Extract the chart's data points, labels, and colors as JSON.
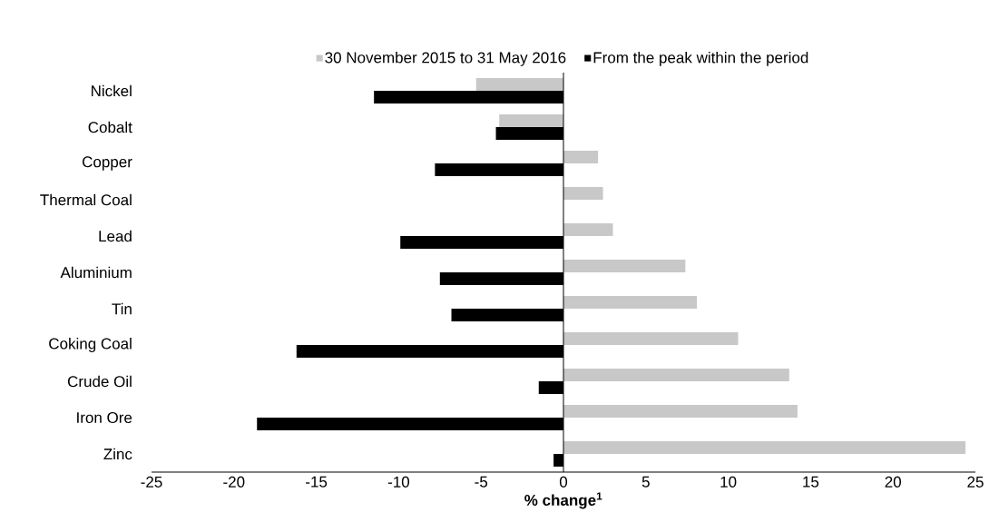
{
  "chart_data": {
    "type": "bar",
    "orientation": "horizontal",
    "xlabel": "% change$^{1}$",
    "categories": [
      "Nickel",
      "Cobalt",
      "Copper",
      "Thermal Coal",
      "Lead",
      "Aluminium",
      "Tin",
      "Coking Coal",
      "Crude Oil",
      "Iron Ore",
      "Zinc"
    ],
    "series": [
      {
        "name": "30 November 2015 to 31 May 2016",
        "color": "#c8c8c8",
        "values": [
          -5.3,
          -3.9,
          2.1,
          2.4,
          3.0,
          7.4,
          8.1,
          10.6,
          13.7,
          14.2,
          24.4
        ]
      },
      {
        "name": "From the peak within the period",
        "color": "#000000",
        "values": [
          -11.5,
          -4.1,
          -7.8,
          null,
          -9.9,
          -7.5,
          -6.8,
          -16.2,
          -1.5,
          -18.6,
          -0.6
        ]
      }
    ],
    "xlim": [
      -25,
      25
    ],
    "xticks": [
      -25,
      -20,
      -15,
      -10,
      -5,
      0,
      5,
      10,
      15,
      20,
      25
    ],
    "legend": "top"
  }
}
